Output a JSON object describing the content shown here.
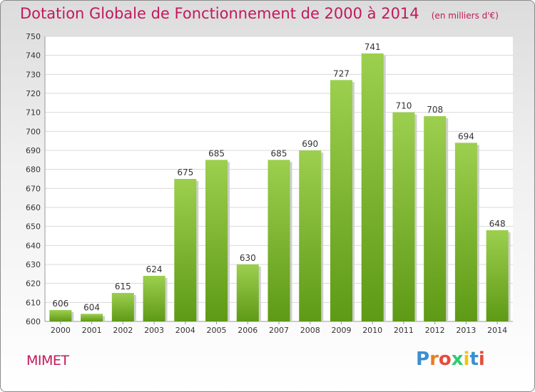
{
  "header": {
    "title": "Dotation Globale de Fonctionnement de 2000 à 2014",
    "unit": "(en milliers d'€)"
  },
  "footer": {
    "commune": "MIMET",
    "logo": "Proxiti"
  },
  "colors": {
    "accent": "#c2185b",
    "bar_light": "#9ccf4e",
    "bar_dark": "#5e9a15",
    "grid": "#d8d8d8"
  },
  "chart_data": {
    "type": "bar",
    "title": "Dotation Globale de Fonctionnement de 2000 à 2014",
    "subtitle": "(en milliers d'€)",
    "xlabel": "",
    "ylabel": "",
    "categories": [
      "2000",
      "2001",
      "2002",
      "2003",
      "2004",
      "2005",
      "2006",
      "2007",
      "2008",
      "2009",
      "2010",
      "2011",
      "2012",
      "2013",
      "2014"
    ],
    "values": [
      606,
      604,
      615,
      624,
      675,
      685,
      630,
      685,
      690,
      727,
      741,
      710,
      708,
      694,
      648
    ],
    "ylim": [
      600,
      750
    ],
    "yticks": [
      600,
      610,
      620,
      630,
      640,
      650,
      660,
      670,
      680,
      690,
      700,
      710,
      720,
      730,
      740,
      750
    ],
    "grid": true,
    "legend": "none"
  }
}
